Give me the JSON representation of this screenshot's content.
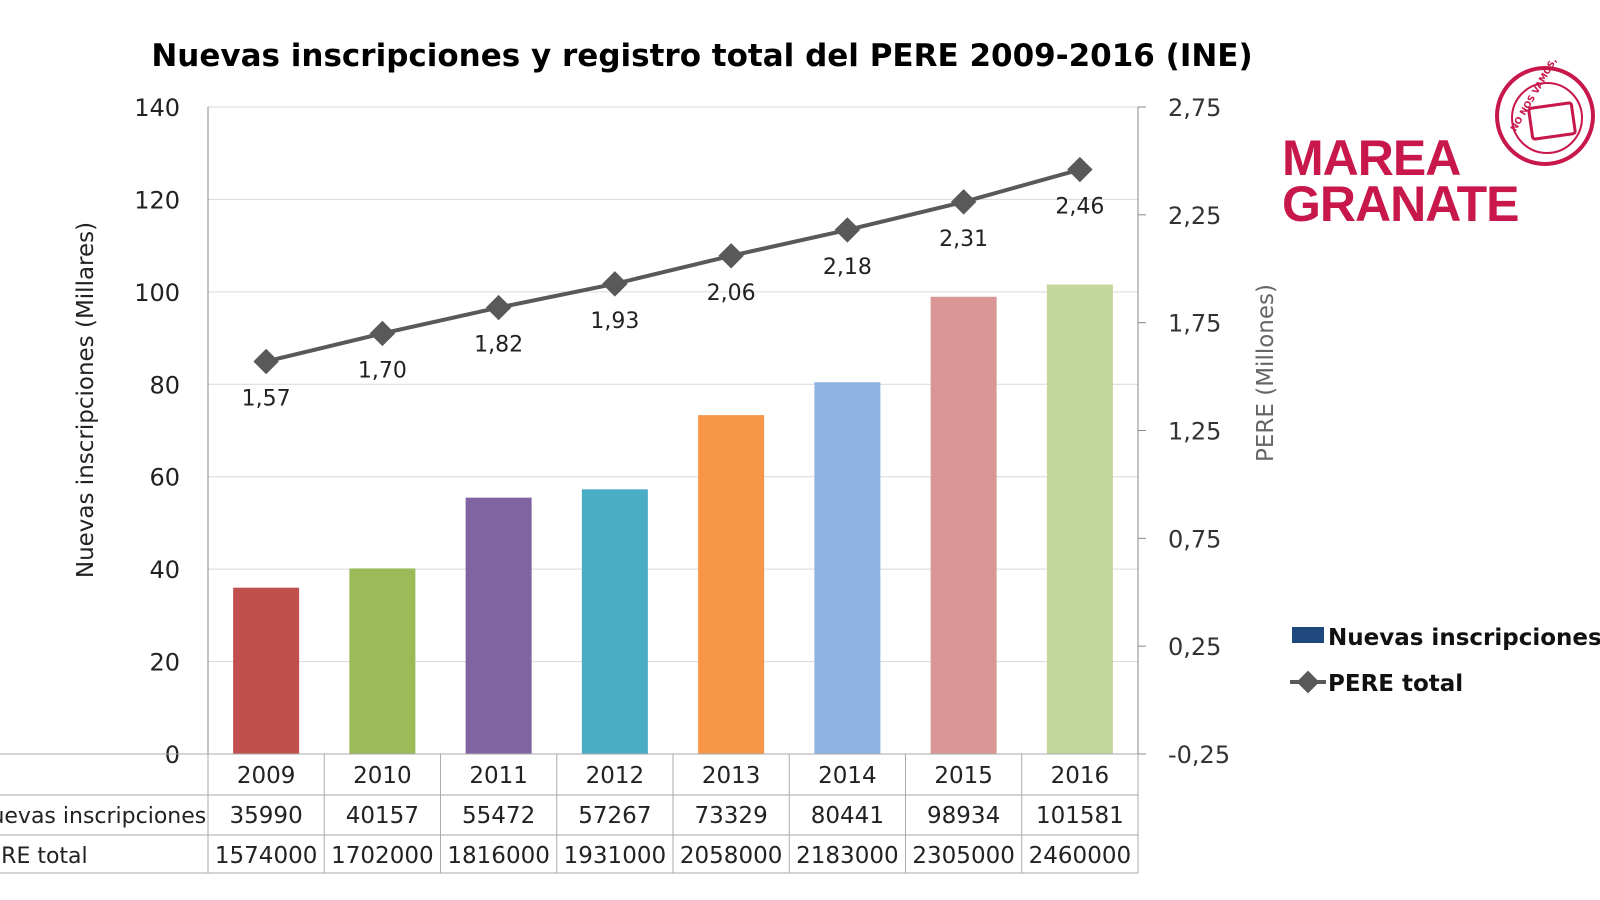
{
  "chart_data": {
    "type": "bar+line",
    "title": "Nuevas inscripciones y registro total del PERE 2009-2016 (INE)",
    "categories": [
      "2009",
      "2010",
      "2011",
      "2012",
      "2013",
      "2014",
      "2015",
      "2016"
    ],
    "ylabel_left": "Nuevas inscripciones (Millares)",
    "ylabel_right": "PERE (Millones)",
    "ylim_left": [
      0,
      140
    ],
    "yticks_left": [
      "0",
      "20",
      "40",
      "60",
      "80",
      "100",
      "120",
      "140"
    ],
    "ylim_right": [
      -0.25,
      2.75
    ],
    "yticks_right": [
      "-0,25",
      "0,25",
      "0,75",
      "1,25",
      "1,75",
      "2,25",
      "2,75"
    ],
    "series": [
      {
        "name": "Nuevas inscripciones",
        "type": "bar",
        "axis": "left",
        "values": [
          35.99,
          40.157,
          55.472,
          57.267,
          73.329,
          80.441,
          98.934,
          101.581
        ],
        "colors": [
          "#C0504D",
          "#9BBB59",
          "#8064A2",
          "#4BACC6",
          "#F79646",
          "#8DB3E2",
          "#D99694",
          "#C3D69B"
        ],
        "legend_color": "#1F497D"
      },
      {
        "name": "PERE total",
        "type": "line",
        "axis": "right",
        "values": [
          1.57,
          1.7,
          1.82,
          1.93,
          2.06,
          2.18,
          2.31,
          2.46
        ],
        "labels": [
          "1,57",
          "1,70",
          "1,82",
          "1,93",
          "2,06",
          "2,18",
          "2,31",
          "2,46"
        ],
        "color": "#595959"
      }
    ],
    "data_table": {
      "row_labels": [
        "Nuevas inscripciones",
        "PERE total"
      ],
      "rows": [
        [
          "35990",
          "40157",
          "55472",
          "57267",
          "73329",
          "80441",
          "98934",
          "101581"
        ],
        [
          "1574000",
          "1702000",
          "1816000",
          "1931000",
          "2058000",
          "2183000",
          "2305000",
          "2460000"
        ]
      ]
    },
    "legend": [
      "Nuevas inscripciones",
      "PERE total"
    ],
    "legend_position": "right",
    "grid": true
  },
  "logo": {
    "line1": "MAREA",
    "line2": "GRANATE",
    "stamp_text": "NO NOS VAMOS,"
  }
}
